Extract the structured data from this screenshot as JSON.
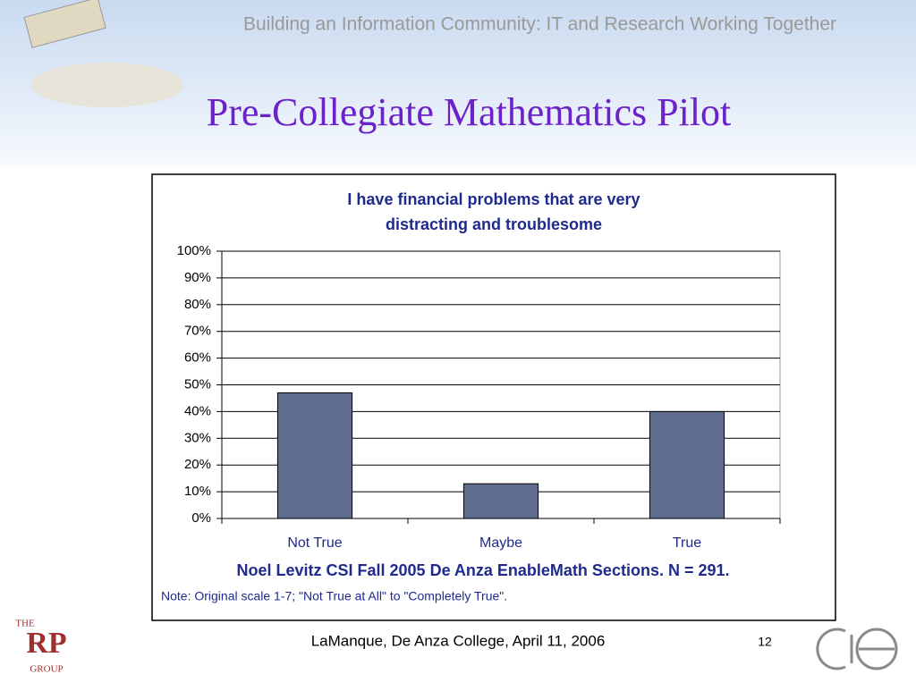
{
  "header": {
    "banner": "Building an Information Community:  IT and Research Working Together",
    "title": "Pre-Collegiate Mathematics Pilot"
  },
  "chart_data": {
    "type": "bar",
    "title": [
      "I have financial problems that are very",
      "distracting and troublesome"
    ],
    "categories": [
      "Not True",
      "Maybe",
      "True"
    ],
    "values": [
      47,
      13,
      40
    ],
    "color": "#5f6b8f",
    "ylim": [
      0,
      100
    ],
    "yticks": [
      {
        "value": 0,
        "label": "0%"
      },
      {
        "value": 10,
        "label": "10%"
      },
      {
        "value": 20,
        "label": "20%"
      },
      {
        "value": 30,
        "label": "30%"
      },
      {
        "value": 40,
        "label": "40%"
      },
      {
        "value": 50,
        "label": "50%"
      },
      {
        "value": 60,
        "label": "60%"
      },
      {
        "value": 70,
        "label": "70%"
      },
      {
        "value": 80,
        "label": "80%"
      },
      {
        "value": 90,
        "label": "90%"
      },
      {
        "value": 100,
        "label": "100%"
      }
    ],
    "grid": true,
    "caption": "Noel Levitz CSI Fall 2005 De Anza EnableMath Sections.  N = 291.",
    "note": "Note:  Original scale 1-7; \"Not True at All\" to \"Completely True\"."
  },
  "footer": {
    "text": "LaManque, De Anza College, April 11, 2006",
    "page": "12",
    "logo": [
      "THE",
      "RP",
      "GROUP"
    ]
  }
}
